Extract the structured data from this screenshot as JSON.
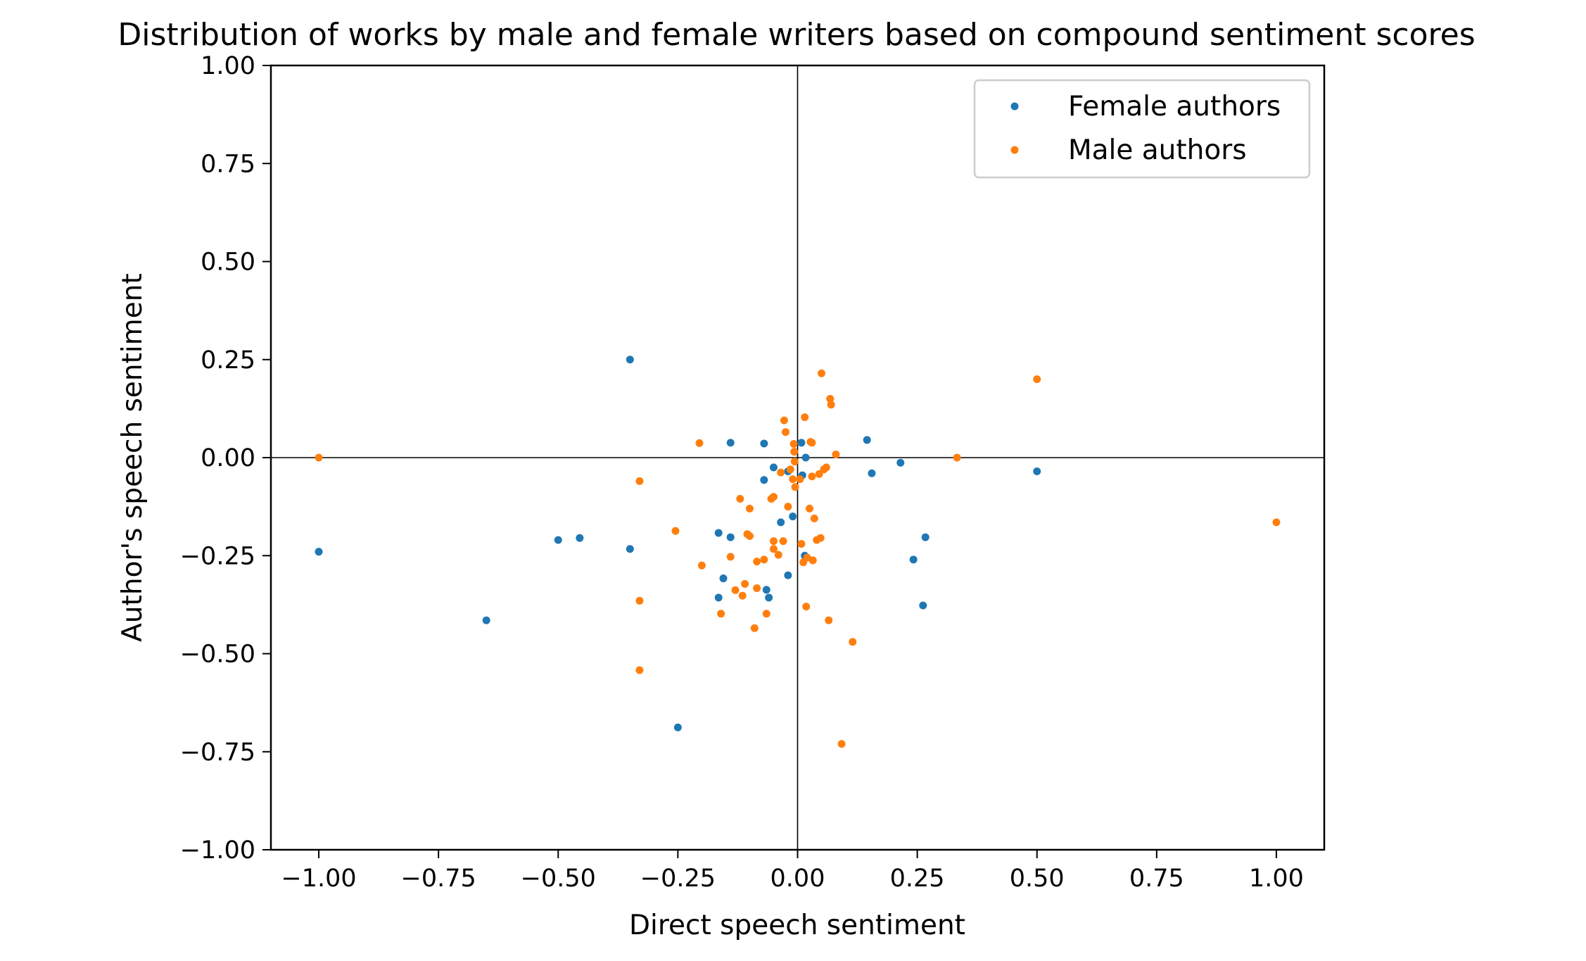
{
  "chart_data": {
    "type": "scatter",
    "title": "Distribution of works by male and female writers based on compound sentiment scores",
    "xlabel": "Direct speech sentiment",
    "ylabel": "Author's speech sentiment",
    "xlim": [
      -1.1,
      1.1
    ],
    "ylim": [
      -1.0,
      1.0
    ],
    "xticks": [
      -1.0,
      -0.75,
      -0.5,
      -0.25,
      0.0,
      0.25,
      0.5,
      0.75,
      1.0
    ],
    "yticks": [
      -1.0,
      -0.75,
      -0.5,
      -0.25,
      0.0,
      0.25,
      0.5,
      0.75,
      1.0
    ],
    "xtick_labels": [
      "−1.00",
      "−0.75",
      "−0.50",
      "−0.25",
      "0.00",
      "0.25",
      "0.50",
      "0.75",
      "1.00"
    ],
    "ytick_labels": [
      "−1.00",
      "−0.75",
      "−0.50",
      "−0.25",
      "0.00",
      "0.25",
      "0.50",
      "0.75",
      "1.00"
    ],
    "reference_lines": {
      "x": 0,
      "y": 0
    },
    "grid": false,
    "legend_position": "top-right",
    "series": [
      {
        "name": "Female authors",
        "color": "#1f77b4",
        "points": [
          [
            -0.35,
            0.25
          ],
          [
            -1.0,
            -0.24
          ],
          [
            -0.65,
            -0.415
          ],
          [
            -0.5,
            -0.21
          ],
          [
            -0.455,
            -0.205
          ],
          [
            -0.35,
            -0.233
          ],
          [
            -0.25,
            -0.688
          ],
          [
            -0.14,
            0.038
          ],
          [
            -0.07,
            0.036
          ],
          [
            0.008,
            0.038
          ],
          [
            0.145,
            0.045
          ],
          [
            -0.05,
            -0.025
          ],
          [
            -0.02,
            -0.035
          ],
          [
            -0.07,
            -0.057
          ],
          [
            0.01,
            -0.045
          ],
          [
            0.017,
            0.0
          ],
          [
            0.155,
            -0.04
          ],
          [
            0.215,
            -0.013
          ],
          [
            -0.035,
            -0.165
          ],
          [
            -0.01,
            -0.15
          ],
          [
            -0.165,
            -0.192
          ],
          [
            -0.14,
            -0.203
          ],
          [
            0.015,
            -0.25
          ],
          [
            -0.155,
            -0.308
          ],
          [
            -0.02,
            -0.3
          ],
          [
            -0.065,
            -0.337
          ],
          [
            -0.06,
            -0.357
          ],
          [
            -0.165,
            -0.357
          ],
          [
            0.242,
            -0.26
          ],
          [
            0.267,
            -0.203
          ],
          [
            0.262,
            -0.377
          ],
          [
            0.5,
            -0.035
          ]
        ]
      },
      {
        "name": "Male authors",
        "color": "#ff7f0e",
        "points": [
          [
            -1.0,
            0.0
          ],
          [
            -0.33,
            -0.06
          ],
          [
            -0.33,
            -0.365
          ],
          [
            -0.33,
            -0.542
          ],
          [
            -0.255,
            -0.187
          ],
          [
            -0.205,
            0.037
          ],
          [
            -0.2,
            -0.275
          ],
          [
            -0.16,
            -0.398
          ],
          [
            -0.14,
            -0.253
          ],
          [
            -0.13,
            -0.338
          ],
          [
            -0.12,
            -0.105
          ],
          [
            -0.115,
            -0.352
          ],
          [
            -0.11,
            -0.322
          ],
          [
            -0.105,
            -0.195
          ],
          [
            -0.1,
            -0.13
          ],
          [
            -0.1,
            -0.2
          ],
          [
            -0.09,
            -0.435
          ],
          [
            -0.085,
            -0.265
          ],
          [
            -0.085,
            -0.333
          ],
          [
            -0.07,
            -0.26
          ],
          [
            -0.065,
            -0.398
          ],
          [
            -0.055,
            -0.105
          ],
          [
            -0.05,
            -0.1
          ],
          [
            -0.05,
            -0.213
          ],
          [
            -0.05,
            -0.233
          ],
          [
            -0.04,
            -0.248
          ],
          [
            -0.035,
            -0.038
          ],
          [
            -0.03,
            -0.213
          ],
          [
            -0.028,
            0.095
          ],
          [
            -0.025,
            0.065
          ],
          [
            -0.02,
            -0.125
          ],
          [
            -0.015,
            -0.03
          ],
          [
            -0.01,
            -0.055
          ],
          [
            -0.008,
            0.035
          ],
          [
            -0.007,
            0.015
          ],
          [
            -0.006,
            -0.01
          ],
          [
            -0.005,
            -0.075
          ],
          [
            0.005,
            -0.055
          ],
          [
            0.008,
            -0.22
          ],
          [
            0.012,
            -0.267
          ],
          [
            0.015,
            0.103
          ],
          [
            0.018,
            -0.38
          ],
          [
            0.02,
            -0.255
          ],
          [
            0.025,
            -0.13
          ],
          [
            0.027,
            0.04
          ],
          [
            0.03,
            0.038
          ],
          [
            0.03,
            -0.048
          ],
          [
            0.032,
            -0.262
          ],
          [
            0.035,
            -0.155
          ],
          [
            0.04,
            -0.21
          ],
          [
            0.045,
            -0.042
          ],
          [
            0.048,
            -0.205
          ],
          [
            0.05,
            0.215
          ],
          [
            0.055,
            -0.03
          ],
          [
            0.06,
            -0.025
          ],
          [
            0.065,
            -0.415
          ],
          [
            0.068,
            0.15
          ],
          [
            0.07,
            0.135
          ],
          [
            0.08,
            0.008
          ],
          [
            0.092,
            -0.73
          ],
          [
            0.115,
            -0.47
          ],
          [
            0.333,
            0.0
          ],
          [
            0.5,
            0.2
          ],
          [
            1.0,
            -0.165
          ]
        ]
      }
    ]
  }
}
